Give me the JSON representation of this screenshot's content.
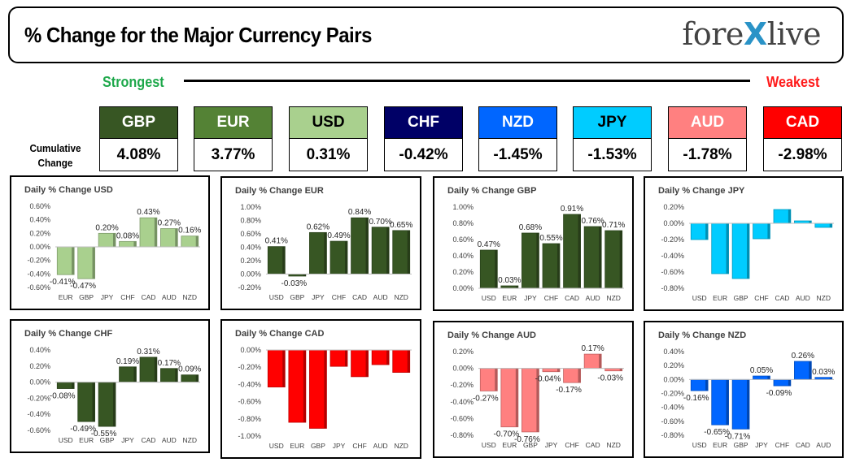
{
  "header": {
    "title": "% Change for the Major Currency Pairs",
    "logo_left": "fore",
    "logo_x": "X",
    "logo_right": "live"
  },
  "ranking": {
    "strongest_label": "Strongest",
    "weakest_label": "Weakest",
    "cumulative_label_line1": "Cumulative",
    "cumulative_label_line2": "Change",
    "currencies": [
      {
        "name": "GBP",
        "value": "4.08%",
        "color": "#375623",
        "text_color": "#ffffff"
      },
      {
        "name": "EUR",
        "value": "3.77%",
        "color": "#548235",
        "text_color": "#ffffff"
      },
      {
        "name": "USD",
        "value": "0.31%",
        "color": "#a9d08e",
        "text_color": "#000000"
      },
      {
        "name": "CHF",
        "value": "-0.42%",
        "color": "#000066",
        "text_color": "#ffffff"
      },
      {
        "name": "NZD",
        "value": "-1.45%",
        "color": "#0066ff",
        "text_color": "#ffffff"
      },
      {
        "name": "JPY",
        "value": "-1.53%",
        "color": "#00ccff",
        "text_color": "#000000"
      },
      {
        "name": "AUD",
        "value": "-1.78%",
        "color": "#ff8080",
        "text_color": "#ffffff"
      },
      {
        "name": "CAD",
        "value": "-2.98%",
        "color": "#ff0000",
        "text_color": "#ffffff"
      }
    ]
  },
  "chart_data": [
    {
      "type": "bar",
      "title": "Daily % Change USD",
      "color": "#a9d08e",
      "categories": [
        "EUR",
        "GBP",
        "JPY",
        "CHF",
        "CAD",
        "AUD",
        "NZD"
      ],
      "values": [
        -0.41,
        -0.47,
        0.2,
        0.08,
        0.43,
        0.27,
        0.16
      ],
      "labels": [
        "-0.41%",
        "-0.47%",
        "0.20%",
        "0.08%",
        "0.43%",
        "0.27%",
        "0.16%"
      ],
      "ylim": [
        -0.6,
        0.6
      ],
      "yticks": [
        "0.60%",
        "0.40%",
        "0.20%",
        "0.00%",
        "-0.20%",
        "-0.40%",
        "-0.60%"
      ]
    },
    {
      "type": "bar",
      "title": "Daily % Change EUR",
      "color": "#375623",
      "categories": [
        "USD",
        "GBP",
        "JPY",
        "CHF",
        "CAD",
        "AUD",
        "NZD"
      ],
      "values": [
        0.41,
        -0.03,
        0.62,
        0.49,
        0.84,
        0.7,
        0.65
      ],
      "labels": [
        "0.41%",
        "-0.03%",
        "0.62%",
        "0.49%",
        "0.84%",
        "0.70%",
        "0.65%"
      ],
      "ylim": [
        -0.2,
        1.0
      ],
      "yticks": [
        "1.00%",
        "0.80%",
        "0.60%",
        "0.40%",
        "0.20%",
        "0.00%",
        "-0.20%"
      ]
    },
    {
      "type": "bar",
      "title": "Daily % Change GBP",
      "color": "#375623",
      "categories": [
        "USD",
        "EUR",
        "JPY",
        "CHF",
        "CAD",
        "AUD",
        "NZD"
      ],
      "values": [
        0.47,
        0.03,
        0.68,
        0.55,
        0.91,
        0.76,
        0.71
      ],
      "labels": [
        "0.47%",
        "0.03%",
        "0.68%",
        "0.55%",
        "0.91%",
        "0.76%",
        "0.71%"
      ],
      "ylim": [
        0.0,
        1.0
      ],
      "yticks": [
        "1.00%",
        "0.80%",
        "0.60%",
        "0.40%",
        "0.20%",
        "0.00%"
      ]
    },
    {
      "type": "bar",
      "title": "Daily % Change JPY",
      "color": "#00ccff",
      "categories": [
        "USD",
        "EUR",
        "GBP",
        "CHF",
        "CAD",
        "AUD",
        "NZD"
      ],
      "values": [
        -0.2,
        -0.62,
        -0.68,
        -0.19,
        0.17,
        0.03,
        -0.05
      ],
      "labels": [],
      "ylim": [
        -0.8,
        0.2
      ],
      "yticks": [
        "0.20%",
        "0.00%",
        "-0.20%",
        "-0.40%",
        "-0.60%",
        "-0.80%"
      ]
    },
    {
      "type": "bar",
      "title": "Daily % Change CHF",
      "color": "#375623",
      "categories": [
        "USD",
        "EUR",
        "GBP",
        "JPY",
        "CAD",
        "AUD",
        "NZD"
      ],
      "values": [
        -0.08,
        -0.49,
        -0.55,
        0.19,
        0.31,
        0.17,
        0.09
      ],
      "labels": [
        "-0.08%",
        "-0.49%",
        "-0.55%",
        "0.19%",
        "0.31%",
        "0.17%",
        "0.09%"
      ],
      "ylim": [
        -0.6,
        0.4
      ],
      "yticks": [
        "0.40%",
        "0.20%",
        "0.00%",
        "-0.20%",
        "-0.40%",
        "-0.60%"
      ]
    },
    {
      "type": "bar",
      "title": "Daily % Change CAD",
      "color": "#ff0000",
      "categories": [
        "USD",
        "EUR",
        "GBP",
        "JPY",
        "CHF",
        "AUD",
        "NZD"
      ],
      "values": [
        -0.43,
        -0.84,
        -0.91,
        -0.19,
        -0.31,
        -0.17,
        -0.26
      ],
      "labels": [],
      "ylim": [
        -1.0,
        0.0
      ],
      "yticks": [
        "0.00%",
        "-0.20%",
        "-0.40%",
        "-0.60%",
        "-0.80%",
        "-1.00%"
      ]
    },
    {
      "type": "bar",
      "title": "Daily % Change AUD",
      "color": "#ff8080",
      "categories": [
        "USD",
        "EUR",
        "GBP",
        "JPY",
        "CHF",
        "CAD",
        "NZD"
      ],
      "values": [
        -0.27,
        -0.7,
        -0.76,
        -0.04,
        -0.17,
        0.17,
        -0.03
      ],
      "labels": [
        "-0.27%",
        "-0.70%",
        "-0.76%",
        "-0.04%",
        "-0.17%",
        "0.17%",
        "-0.03%"
      ],
      "ylim": [
        -0.8,
        0.2
      ],
      "yticks": [
        "0.20%",
        "0.00%",
        "-0.20%",
        "-0.40%",
        "-0.60%",
        "-0.80%"
      ]
    },
    {
      "type": "bar",
      "title": "Daily % Change NZD",
      "color": "#0066ff",
      "categories": [
        "USD",
        "EUR",
        "GBP",
        "JPY",
        "CHF",
        "CAD",
        "AUD"
      ],
      "values": [
        -0.16,
        -0.65,
        -0.71,
        0.05,
        -0.09,
        0.26,
        0.03
      ],
      "labels": [
        "-0.16%",
        "-0.65%",
        "-0.71%",
        "0.05%",
        "-0.09%",
        "0.26%",
        "0.03%"
      ],
      "ylim": [
        -0.8,
        0.4
      ],
      "yticks": [
        "0.40%",
        "0.20%",
        "0.00%",
        "-0.20%",
        "-0.40%",
        "-0.60%",
        "-0.80%"
      ]
    }
  ]
}
